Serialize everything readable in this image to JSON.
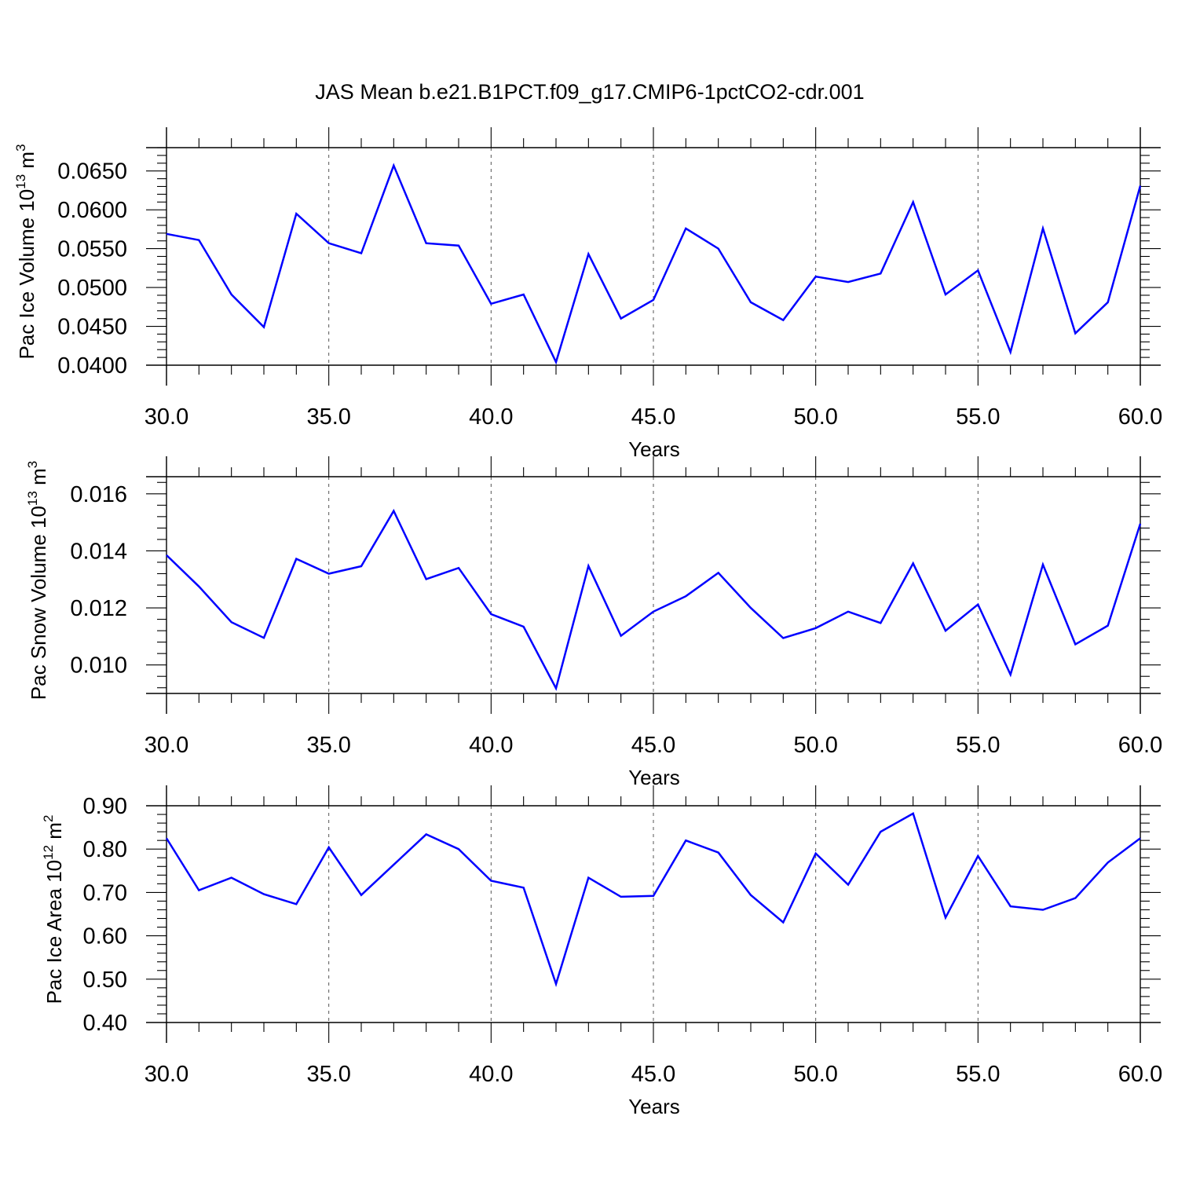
{
  "figure": {
    "title": "JAS Mean b.e21.B1PCT.f09_g17.CMIP6-1pctCO2-cdr.001"
  },
  "chart_data": [
    {
      "type": "line",
      "title": "",
      "xlabel": "Years",
      "ylabel": "Pac Ice Volume 10",
      "ylabel_sup": "13",
      "ylabel_unit": " m",
      "ylabel_unit_sup": "3",
      "xlim": [
        30,
        60
      ],
      "ylim": [
        0.04,
        0.068
      ],
      "xticks": [
        30,
        35,
        40,
        45,
        50,
        55,
        60
      ],
      "xtick_labels": [
        "30.0",
        "35.0",
        "40.0",
        "45.0",
        "50.0",
        "55.0",
        "60.0"
      ],
      "yticks": [
        0.04,
        0.045,
        0.05,
        0.055,
        0.06,
        0.065
      ],
      "ytick_labels": [
        "0.0400",
        "0.0450",
        "0.0500",
        "0.0550",
        "0.0600",
        "0.0650"
      ],
      "grid": "vertical dashed at major x ticks",
      "color": "#0000ff",
      "series": [
        {
          "x": [
            30,
            31,
            32,
            33,
            34,
            35,
            36,
            37,
            38,
            39,
            40,
            41,
            42,
            43,
            44,
            45,
            46,
            47,
            48,
            49,
            50,
            51,
            52,
            53,
            54,
            55,
            56,
            57,
            58,
            59,
            60
          ],
          "values": [
            0.0569,
            0.0561,
            0.0491,
            0.0449,
            0.0595,
            0.0557,
            0.0544,
            0.0657,
            0.0557,
            0.0554,
            0.0479,
            0.0491,
            0.0404,
            0.0543,
            0.046,
            0.0484,
            0.0576,
            0.055,
            0.0481,
            0.0458,
            0.0514,
            0.0507,
            0.0518,
            0.061,
            0.0491,
            0.0522,
            0.0417,
            0.0576,
            0.0441,
            0.0481,
            0.0631
          ]
        }
      ]
    },
    {
      "type": "line",
      "title": "",
      "xlabel": "Years",
      "ylabel": "Pac Snow Volume 10",
      "ylabel_sup": "13",
      "ylabel_unit": " m",
      "ylabel_unit_sup": "3",
      "xlim": [
        30,
        60
      ],
      "ylim": [
        0.009,
        0.0166
      ],
      "xticks": [
        30,
        35,
        40,
        45,
        50,
        55,
        60
      ],
      "xtick_labels": [
        "30.0",
        "35.0",
        "40.0",
        "45.0",
        "50.0",
        "55.0",
        "60.0"
      ],
      "yticks": [
        0.01,
        0.012,
        0.014,
        0.016
      ],
      "ytick_labels": [
        "0.010",
        "0.012",
        "0.014",
        "0.016"
      ],
      "grid": "vertical dashed at major x ticks",
      "color": "#0000ff",
      "series": [
        {
          "x": [
            30,
            31,
            32,
            33,
            34,
            35,
            36,
            37,
            38,
            39,
            40,
            41,
            42,
            43,
            44,
            45,
            46,
            47,
            48,
            49,
            50,
            51,
            52,
            53,
            54,
            55,
            56,
            57,
            58,
            59,
            60
          ],
          "values": [
            0.01385,
            0.01275,
            0.0115,
            0.01095,
            0.01372,
            0.0132,
            0.01346,
            0.0154,
            0.01301,
            0.0134,
            0.01178,
            0.01134,
            0.00918,
            0.01347,
            0.01102,
            0.01187,
            0.01241,
            0.01323,
            0.012,
            0.01094,
            0.01129,
            0.01187,
            0.01147,
            0.01356,
            0.0112,
            0.01212,
            0.00966,
            0.01352,
            0.01072,
            0.01138,
            0.01495
          ]
        }
      ]
    },
    {
      "type": "line",
      "title": "",
      "xlabel": "Years",
      "ylabel": "Pac Ice Area 10",
      "ylabel_sup": "12",
      "ylabel_unit": " m",
      "ylabel_unit_sup": "2",
      "xlim": [
        30,
        60
      ],
      "ylim": [
        0.4,
        0.9
      ],
      "xticks": [
        30,
        35,
        40,
        45,
        50,
        55,
        60
      ],
      "xtick_labels": [
        "30.0",
        "35.0",
        "40.0",
        "45.0",
        "50.0",
        "55.0",
        "60.0"
      ],
      "yticks": [
        0.4,
        0.5,
        0.6,
        0.7,
        0.8,
        0.9
      ],
      "ytick_labels": [
        "0.40",
        "0.50",
        "0.60",
        "0.70",
        "0.80",
        "0.90"
      ],
      "grid": "vertical dashed at major x ticks",
      "color": "#0000ff",
      "series": [
        {
          "x": [
            30,
            31,
            32,
            33,
            34,
            35,
            36,
            37,
            38,
            39,
            40,
            41,
            42,
            43,
            44,
            45,
            46,
            47,
            48,
            49,
            50,
            51,
            52,
            53,
            54,
            55,
            56,
            57,
            58,
            59,
            60
          ],
          "values": [
            0.825,
            0.705,
            0.734,
            0.696,
            0.673,
            0.804,
            0.694,
            0.764,
            0.834,
            0.8,
            0.727,
            0.711,
            0.489,
            0.734,
            0.69,
            0.692,
            0.82,
            0.792,
            0.694,
            0.631,
            0.79,
            0.718,
            0.84,
            0.882,
            0.642,
            0.784,
            0.668,
            0.66,
            0.687,
            0.769,
            0.825
          ]
        }
      ]
    }
  ]
}
